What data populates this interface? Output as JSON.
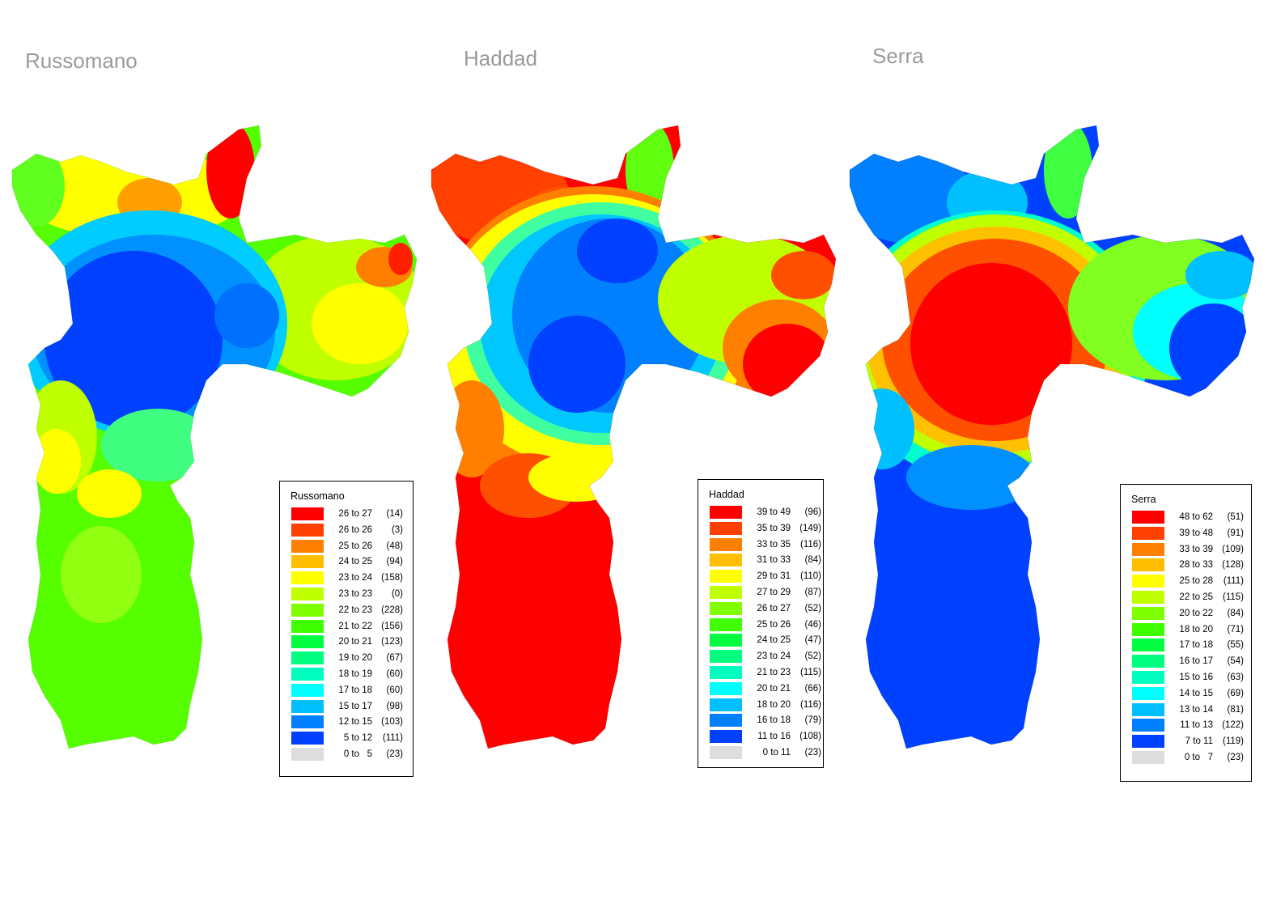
{
  "maps": [
    {
      "title": "Russomano",
      "legend": {
        "title": "Russomano",
        "entries": [
          {
            "range": "26 to 27",
            "count": "(14)",
            "color": "#ff0000"
          },
          {
            "range": "26 to 26",
            "count": "(3)",
            "color": "#ff4000"
          },
          {
            "range": "25 to 26",
            "count": "(48)",
            "color": "#ff8000"
          },
          {
            "range": "24 to 25",
            "count": "(94)",
            "color": "#ffbf00"
          },
          {
            "range": "23 to 24",
            "count": "(158)",
            "color": "#ffff00"
          },
          {
            "range": "23 to 23",
            "count": "(0)",
            "color": "#bfff00"
          },
          {
            "range": "22 to 23",
            "count": "(228)",
            "color": "#80ff00"
          },
          {
            "range": "21 to 22",
            "count": "(156)",
            "color": "#40ff00"
          },
          {
            "range": "20 to 21",
            "count": "(123)",
            "color": "#00ff40"
          },
          {
            "range": "19 to 20",
            "count": "(67)",
            "color": "#00ff80"
          },
          {
            "range": "18 to 19",
            "count": "(60)",
            "color": "#00ffbf"
          },
          {
            "range": "17 to 18",
            "count": "(60)",
            "color": "#00ffff"
          },
          {
            "range": "15 to 17",
            "count": "(98)",
            "color": "#00bfff"
          },
          {
            "range": "12 to 15",
            "count": "(103)",
            "color": "#0080ff"
          },
          {
            "range": "5 to 12",
            "count": "(111)",
            "color": "#0040ff"
          },
          {
            "range": "0 to   5",
            "count": "(23)",
            "color": "#dddddd"
          }
        ]
      }
    },
    {
      "title": "Haddad",
      "legend": {
        "title": "Haddad",
        "entries": [
          {
            "range": "39 to 49",
            "count": "(96)",
            "color": "#ff0000"
          },
          {
            "range": "35 to 39",
            "count": "(149)",
            "color": "#ff4000"
          },
          {
            "range": "33 to 35",
            "count": "(116)",
            "color": "#ff8000"
          },
          {
            "range": "31 to 33",
            "count": "(84)",
            "color": "#ffbf00"
          },
          {
            "range": "29 to 31",
            "count": "(110)",
            "color": "#ffff00"
          },
          {
            "range": "27 to 29",
            "count": "(87)",
            "color": "#bfff00"
          },
          {
            "range": "26 to 27",
            "count": "(52)",
            "color": "#80ff00"
          },
          {
            "range": "25 to 26",
            "count": "(46)",
            "color": "#40ff00"
          },
          {
            "range": "24 to 25",
            "count": "(47)",
            "color": "#00ff40"
          },
          {
            "range": "23 to 24",
            "count": "(52)",
            "color": "#00ff80"
          },
          {
            "range": "21 to 23",
            "count": "(115)",
            "color": "#00ffbf"
          },
          {
            "range": "20 to 21",
            "count": "(66)",
            "color": "#00ffff"
          },
          {
            "range": "18 to 20",
            "count": "(116)",
            "color": "#00bfff"
          },
          {
            "range": "16 to 18",
            "count": "(79)",
            "color": "#0080ff"
          },
          {
            "range": "11 to 16",
            "count": "(108)",
            "color": "#0040ff"
          },
          {
            "range": "0 to 11",
            "count": "(23)",
            "color": "#dddddd"
          }
        ]
      }
    },
    {
      "title": "Serra",
      "legend": {
        "title": "Serra",
        "entries": [
          {
            "range": "48 to 62",
            "count": "(51)",
            "color": "#ff0000"
          },
          {
            "range": "39 to 48",
            "count": "(91)",
            "color": "#ff4000"
          },
          {
            "range": "33 to 39",
            "count": "(109)",
            "color": "#ff8000"
          },
          {
            "range": "28 to 33",
            "count": "(128)",
            "color": "#ffbf00"
          },
          {
            "range": "25 to 28",
            "count": "(111)",
            "color": "#ffff00"
          },
          {
            "range": "22 to 25",
            "count": "(115)",
            "color": "#bfff00"
          },
          {
            "range": "20 to 22",
            "count": "(84)",
            "color": "#80ff00"
          },
          {
            "range": "18 to 20",
            "count": "(71)",
            "color": "#40ff00"
          },
          {
            "range": "17 to 18",
            "count": "(55)",
            "color": "#00ff40"
          },
          {
            "range": "16 to 17",
            "count": "(54)",
            "color": "#00ff80"
          },
          {
            "range": "15 to 16",
            "count": "(63)",
            "color": "#00ffbf"
          },
          {
            "range": "14 to 15",
            "count": "(69)",
            "color": "#00ffff"
          },
          {
            "range": "13 to 14",
            "count": "(81)",
            "color": "#00bfff"
          },
          {
            "range": "11 to 13",
            "count": "(122)",
            "color": "#0080ff"
          },
          {
            "range": "7 to 11",
            "count": "(119)",
            "color": "#0040ff"
          },
          {
            "range": "0 to   7",
            "count": "(23)",
            "color": "#dddddd"
          }
        ]
      }
    }
  ]
}
